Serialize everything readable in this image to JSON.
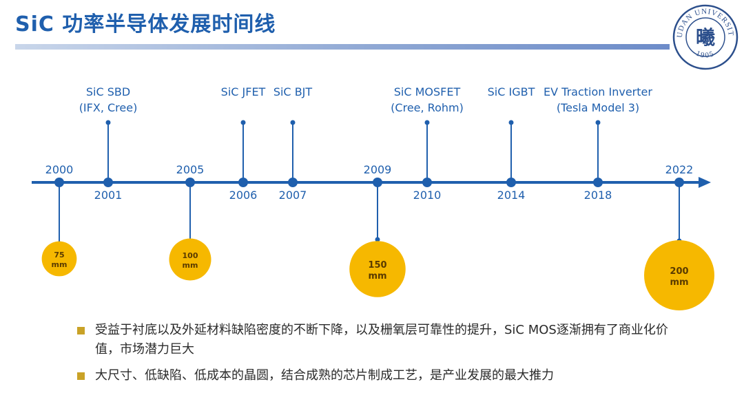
{
  "header": {
    "title": "SiC 功率半导体发展时间线",
    "logo_text": "FUDAN UNIVERSITY",
    "logo_year": "1905",
    "logo_glyph": "曦"
  },
  "colors": {
    "accent": "#1f5fad",
    "wafer": "#f6b800",
    "bullet": "#c9a227"
  },
  "chart_data": {
    "type": "timeline",
    "years": [
      2000,
      2001,
      2005,
      2006,
      2007,
      2009,
      2010,
      2014,
      2018,
      2022
    ],
    "milestones": [
      {
        "year": 2000,
        "label_position": "above",
        "wafer": "75\nmm",
        "wafer_size_mm": 75
      },
      {
        "year": 2001,
        "label_position": "below",
        "event": "SiC SBD\n(IFX, Cree)"
      },
      {
        "year": 2005,
        "label_position": "above",
        "wafer": "100\nmm",
        "wafer_size_mm": 100
      },
      {
        "year": 2006,
        "label_position": "below",
        "event": "SiC JFET"
      },
      {
        "year": 2007,
        "label_position": "below",
        "event": "SiC BJT"
      },
      {
        "year": 2009,
        "label_position": "above",
        "wafer": "150\nmm",
        "wafer_size_mm": 150
      },
      {
        "year": 2010,
        "label_position": "below",
        "event": "SiC MOSFET\n(Cree, Rohm)"
      },
      {
        "year": 2014,
        "label_position": "below",
        "event": "SiC IGBT"
      },
      {
        "year": 2018,
        "label_position": "below",
        "event": "EV Traction Inverter\n(Tesla Model 3)"
      },
      {
        "year": 2022,
        "label_position": "above",
        "wafer": "200\nmm",
        "wafer_size_mm": 200
      }
    ]
  },
  "bullets": [
    "受益于衬底以及外延材料缺陷密度的不断下降，以及栅氧层可靠性的提升，SiC MOS逐渐拥有了商业化价值，市场潜力巨大",
    "大尺寸、低缺陷、低成本的晶圆，结合成熟的芯片制成工艺，是产业发展的最大推力"
  ]
}
